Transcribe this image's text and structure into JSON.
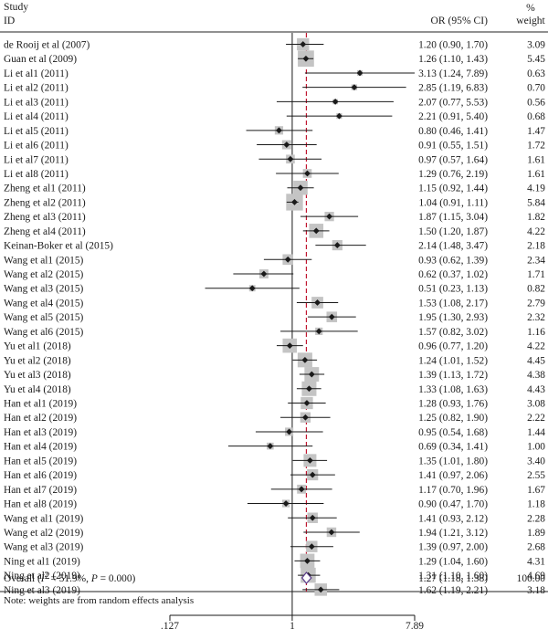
{
  "chart_data": {
    "type": "forest",
    "headers": {
      "study": "Study",
      "id": "ID",
      "or": "OR (95% CI)",
      "weight_pct": "%",
      "weight": "weight"
    },
    "scale": "log",
    "null_value": 1,
    "pooled_line": 1.27,
    "x_ticks": [
      {
        "value": 0.127,
        "label": ".127"
      },
      {
        "value": 1,
        "label": "1"
      },
      {
        "value": 7.89,
        "label": "7.89"
      }
    ],
    "xlim": [
      0.127,
      7.89
    ],
    "studies": [
      {
        "label": "de Rooij et al (2007)",
        "or": 1.2,
        "lo": 0.9,
        "hi": 1.7,
        "ci_text": "1.20 (0.90, 1.70)",
        "weight": 3.09,
        "weight_text": "3.09"
      },
      {
        "label": "Guan et al (2009)",
        "or": 1.26,
        "lo": 1.1,
        "hi": 1.43,
        "ci_text": "1.26 (1.10, 1.43)",
        "weight": 5.45,
        "weight_text": "5.45"
      },
      {
        "label": "Li et al1 (2011)",
        "or": 3.13,
        "lo": 1.24,
        "hi": 7.89,
        "ci_text": "3.13 (1.24, 7.89)",
        "weight": 0.63,
        "weight_text": "0.63"
      },
      {
        "label": "Li et al2 (2011)",
        "or": 2.85,
        "lo": 1.19,
        "hi": 6.83,
        "ci_text": "2.85 (1.19, 6.83)",
        "weight": 0.7,
        "weight_text": "0.70"
      },
      {
        "label": "Li et al3 (2011)",
        "or": 2.07,
        "lo": 0.77,
        "hi": 5.53,
        "ci_text": "2.07 (0.77, 5.53)",
        "weight": 0.56,
        "weight_text": "0.56"
      },
      {
        "label": "Li et al4 (2011)",
        "or": 2.21,
        "lo": 0.91,
        "hi": 5.4,
        "ci_text": "2.21 (0.91, 5.40)",
        "weight": 0.68,
        "weight_text": "0.68"
      },
      {
        "label": "Li et al5 (2011)",
        "or": 0.8,
        "lo": 0.46,
        "hi": 1.41,
        "ci_text": "0.80 (0.46, 1.41)",
        "weight": 1.47,
        "weight_text": "1.47"
      },
      {
        "label": "Li et al6 (2011)",
        "or": 0.91,
        "lo": 0.55,
        "hi": 1.51,
        "ci_text": "0.91 (0.55, 1.51)",
        "weight": 1.72,
        "weight_text": "1.72"
      },
      {
        "label": "Li et al7 (2011)",
        "or": 0.97,
        "lo": 0.57,
        "hi": 1.64,
        "ci_text": "0.97 (0.57, 1.64)",
        "weight": 1.61,
        "weight_text": "1.61"
      },
      {
        "label": "Li et al8 (2011)",
        "or": 1.29,
        "lo": 0.76,
        "hi": 2.19,
        "ci_text": "1.29 (0.76, 2.19)",
        "weight": 1.61,
        "weight_text": "1.61"
      },
      {
        "label": "Zheng et al1 (2011)",
        "or": 1.15,
        "lo": 0.92,
        "hi": 1.44,
        "ci_text": "1.15 (0.92, 1.44)",
        "weight": 4.19,
        "weight_text": "4.19"
      },
      {
        "label": "Zheng et al2 (2011)",
        "or": 1.04,
        "lo": 0.91,
        "hi": 1.11,
        "ci_text": "1.04 (0.91, 1.11)",
        "weight": 5.84,
        "weight_text": "5.84"
      },
      {
        "label": "Zheng et al3 (2011)",
        "or": 1.87,
        "lo": 1.15,
        "hi": 3.04,
        "ci_text": "1.87 (1.15, 3.04)",
        "weight": 1.82,
        "weight_text": "1.82"
      },
      {
        "label": "Zheng et al4 (2011)",
        "or": 1.5,
        "lo": 1.2,
        "hi": 1.87,
        "ci_text": "1.50 (1.20, 1.87)",
        "weight": 4.22,
        "weight_text": "4.22"
      },
      {
        "label": "Keinan-Boker et al (2015)",
        "or": 2.14,
        "lo": 1.48,
        "hi": 3.47,
        "ci_text": "2.14 (1.48, 3.47)",
        "weight": 2.18,
        "weight_text": "2.18"
      },
      {
        "label": "Wang et al1 (2015)",
        "or": 0.93,
        "lo": 0.62,
        "hi": 1.39,
        "ci_text": "0.93 (0.62, 1.39)",
        "weight": 2.34,
        "weight_text": "2.34"
      },
      {
        "label": "Wang et al2 (2015)",
        "or": 0.62,
        "lo": 0.37,
        "hi": 1.02,
        "ci_text": "0.62 (0.37, 1.02)",
        "weight": 1.71,
        "weight_text": "1.71"
      },
      {
        "label": "Wang et al3 (2015)",
        "or": 0.51,
        "lo": 0.23,
        "hi": 1.13,
        "ci_text": "0.51 (0.23, 1.13)",
        "weight": 0.82,
        "weight_text": "0.82"
      },
      {
        "label": "Wang et al4 (2015)",
        "or": 1.53,
        "lo": 1.08,
        "hi": 2.17,
        "ci_text": "1.53 (1.08, 2.17)",
        "weight": 2.79,
        "weight_text": "2.79"
      },
      {
        "label": "Wang et al5 (2015)",
        "or": 1.95,
        "lo": 1.3,
        "hi": 2.93,
        "ci_text": "1.95 (1.30, 2.93)",
        "weight": 2.32,
        "weight_text": "2.32"
      },
      {
        "label": "Wang et al6 (2015)",
        "or": 1.57,
        "lo": 0.82,
        "hi": 3.02,
        "ci_text": "1.57 (0.82, 3.02)",
        "weight": 1.16,
        "weight_text": "1.16"
      },
      {
        "label": "Yu et al1 (2018)",
        "or": 0.96,
        "lo": 0.77,
        "hi": 1.2,
        "ci_text": "0.96 (0.77, 1.20)",
        "weight": 4.22,
        "weight_text": "4.22"
      },
      {
        "label": "Yu et al2 (2018)",
        "or": 1.24,
        "lo": 1.01,
        "hi": 1.52,
        "ci_text": "1.24 (1.01, 1.52)",
        "weight": 4.45,
        "weight_text": "4.45"
      },
      {
        "label": "Yu et al3 (2018)",
        "or": 1.39,
        "lo": 1.13,
        "hi": 1.72,
        "ci_text": "1.39 (1.13, 1.72)",
        "weight": 4.38,
        "weight_text": "4.38"
      },
      {
        "label": "Yu et al4 (2018)",
        "or": 1.33,
        "lo": 1.08,
        "hi": 1.63,
        "ci_text": "1.33 (1.08, 1.63)",
        "weight": 4.43,
        "weight_text": "4.43"
      },
      {
        "label": "Han et al1 (2019)",
        "or": 1.28,
        "lo": 0.93,
        "hi": 1.76,
        "ci_text": "1.28 (0.93, 1.76)",
        "weight": 3.08,
        "weight_text": "3.08"
      },
      {
        "label": "Han et al2 (2019)",
        "or": 1.25,
        "lo": 0.82,
        "hi": 1.9,
        "ci_text": "1.25 (0.82, 1.90)",
        "weight": 2.22,
        "weight_text": "2.22"
      },
      {
        "label": "Han et al3 (2019)",
        "or": 0.95,
        "lo": 0.54,
        "hi": 1.68,
        "ci_text": "0.95 (0.54, 1.68)",
        "weight": 1.44,
        "weight_text": "1.44"
      },
      {
        "label": "Han et al4 (2019)",
        "or": 0.69,
        "lo": 0.34,
        "hi": 1.41,
        "ci_text": "0.69 (0.34, 1.41)",
        "weight": 1.0,
        "weight_text": "1.00"
      },
      {
        "label": "Han et al5 (2019)",
        "or": 1.35,
        "lo": 1.01,
        "hi": 1.8,
        "ci_text": "1.35 (1.01, 1.80)",
        "weight": 3.4,
        "weight_text": "3.40"
      },
      {
        "label": "Han et al6 (2019)",
        "or": 1.41,
        "lo": 0.97,
        "hi": 2.06,
        "ci_text": "1.41 (0.97, 2.06)",
        "weight": 2.55,
        "weight_text": "2.55"
      },
      {
        "label": "Han et al7 (2019)",
        "or": 1.17,
        "lo": 0.7,
        "hi": 1.96,
        "ci_text": "1.17 (0.70, 1.96)",
        "weight": 1.67,
        "weight_text": "1.67"
      },
      {
        "label": "Han et al8 (2019)",
        "or": 0.9,
        "lo": 0.47,
        "hi": 1.7,
        "ci_text": "0.90 (0.47, 1.70)",
        "weight": 1.18,
        "weight_text": "1.18"
      },
      {
        "label": "Wang et al1 (2019)",
        "or": 1.41,
        "lo": 0.93,
        "hi": 2.12,
        "ci_text": "1.41 (0.93, 2.12)",
        "weight": 2.28,
        "weight_text": "2.28"
      },
      {
        "label": "Wang et al2 (2019)",
        "or": 1.94,
        "lo": 1.21,
        "hi": 3.12,
        "ci_text": "1.94 (1.21, 3.12)",
        "weight": 1.89,
        "weight_text": "1.89"
      },
      {
        "label": "Wang et al3 (2019)",
        "or": 1.39,
        "lo": 0.97,
        "hi": 2.0,
        "ci_text": "1.39 (0.97, 2.00)",
        "weight": 2.68,
        "weight_text": "2.68"
      },
      {
        "label": "Ning et al1 (2019)",
        "or": 1.29,
        "lo": 1.04,
        "hi": 1.6,
        "ci_text": "1.29 (1.04, 1.60)",
        "weight": 4.31,
        "weight_text": "4.31"
      },
      {
        "label": "Ning et al2 (2019)",
        "or": 1.31,
        "lo": 1.1,
        "hi": 1.6,
        "ci_text": "1.31 (1.10, 1.60)",
        "weight": 4.69,
        "weight_text": "4.69"
      },
      {
        "label": "Ning et al3 (2019)",
        "or": 1.62,
        "lo": 1.19,
        "hi": 2.21,
        "ci_text": "1.62 (1.19, 2.21)",
        "weight": 3.18,
        "weight_text": "3.18"
      }
    ],
    "overall": {
      "label_prefix": "Overall  (",
      "label_i2": "I",
      "label_sup": "2",
      "label_mid": " = 51.9%, ",
      "label_p": "P",
      "label_suffix": " = 0.000)",
      "or": 1.27,
      "lo": 1.18,
      "hi": 1.38,
      "ci_text": "1.27 (1.18, 1.38)",
      "weight_text": "100.00"
    },
    "note": "Note: weights are from random effects analysis",
    "colors": {
      "box": "#c4c4c4",
      "point": "#1a1a1a",
      "ci_line": "#1a1a1a",
      "null_line": "#1a1a1a",
      "pooled_line": "#c0152f",
      "diamond_stroke": "#5a3b8a",
      "rule": "#222222"
    }
  }
}
